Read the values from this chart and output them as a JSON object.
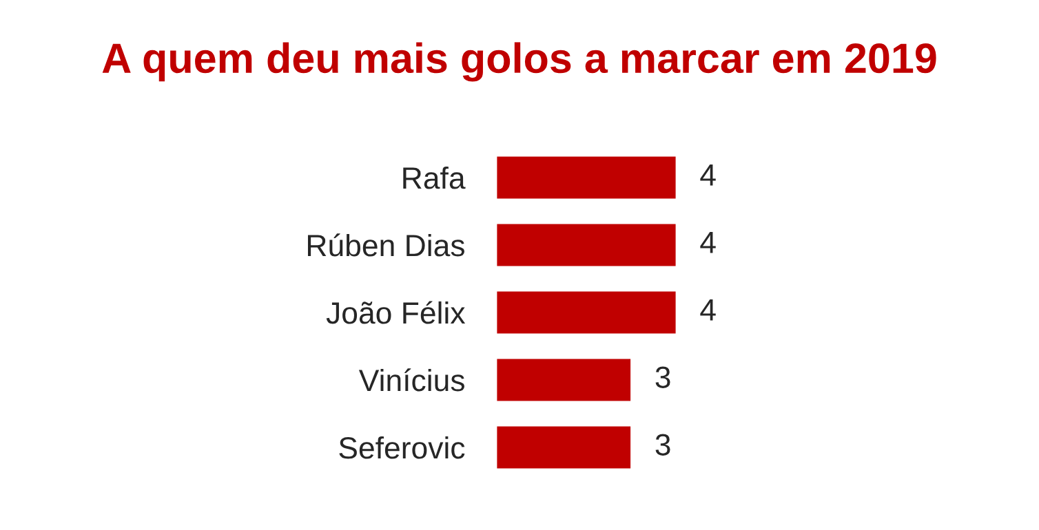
{
  "chart_data": {
    "type": "bar",
    "orientation": "horizontal",
    "title": "A quem deu mais golos a marcar em 2019",
    "categories": [
      "Rafa",
      "Rúben Dias",
      "João Félix",
      "Vinícius",
      "Seferovic"
    ],
    "values": [
      4,
      4,
      4,
      3,
      3
    ],
    "color": "#c00000",
    "data_labels": true,
    "grid": false,
    "legend": false
  }
}
